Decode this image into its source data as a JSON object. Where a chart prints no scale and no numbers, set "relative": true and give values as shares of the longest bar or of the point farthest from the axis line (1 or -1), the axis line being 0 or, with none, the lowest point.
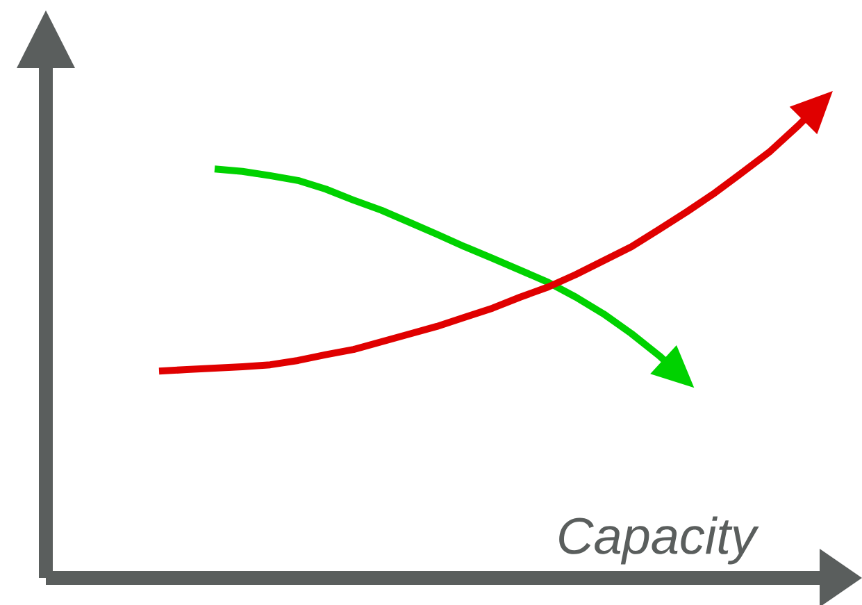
{
  "chart_data": {
    "type": "line",
    "relative": true,
    "annotations": [
      "Capacity"
    ],
    "categories": [
      null,
      null,
      null,
      null,
      null,
      null,
      null,
      null,
      null,
      null,
      null,
      null,
      null,
      null,
      null,
      null,
      null,
      null,
      null,
      null,
      null,
      null,
      null,
      null,
      null
    ],
    "series": [
      {
        "color": "#00d200",
        "values": [
          null,
          null,
          0.852,
          0.847,
          0.838,
          0.828,
          0.81,
          0.787,
          0.766,
          0.741,
          0.716,
          0.69,
          0.666,
          0.641,
          0.616,
          0.585,
          0.55,
          0.509,
          0.463,
          0.41,
          null,
          null,
          null,
          null,
          null
        ]
      },
      {
        "color": "#e00000",
        "values": [
          0.431,
          0.434,
          0.437,
          0.44,
          0.444,
          0.453,
          0.465,
          0.476,
          0.492,
          0.508,
          0.524,
          0.543,
          0.562,
          0.585,
          0.606,
          0.632,
          0.661,
          0.69,
          0.726,
          0.763,
          0.802,
          0.845,
          0.889,
          0.942,
          1
        ]
      }
    ]
  }
}
